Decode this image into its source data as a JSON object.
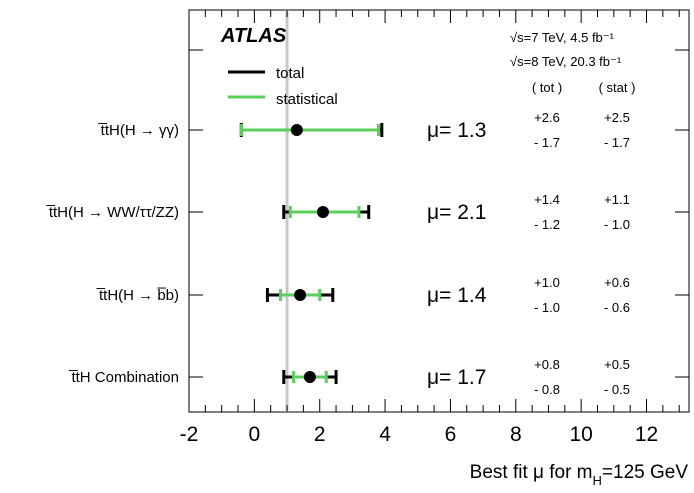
{
  "chart_data": {
    "type": "scatter",
    "title": "",
    "experiment_label": "ATLAS",
    "energy_lines": [
      "√s=7 TeV, 4.5  fb⁻¹",
      "√s=8 TeV, 20.3 fb⁻¹"
    ],
    "column_headers": [
      "( tot )",
      "( stat )"
    ],
    "legend": [
      {
        "name": "total",
        "color": "#000000"
      },
      {
        "name": "statistical",
        "color": "#5ad05a"
      }
    ],
    "xlabel": "Best fit μ for m_H=125 GeV",
    "xlabel_parts": {
      "pre": "Best fit μ for m",
      "sub": "H",
      "post": "=125 GeV"
    },
    "xlim": [
      -2,
      13.3
    ],
    "xticks": [
      -2,
      0,
      2,
      4,
      6,
      8,
      10,
      12
    ],
    "xtick_labels": [
      "-2",
      "0",
      "2",
      "4",
      "6",
      "8",
      "10",
      "12"
    ],
    "reference_line": {
      "x": 1.0,
      "color": "#c8c8c8"
    },
    "categories": [
      "t̅tH(H → γγ)",
      "t̅tH(H → WW/ττ/ZZ)",
      "t̅tH(H → b̅b)",
      "t̅tH Combination"
    ],
    "series": [
      {
        "name": "total",
        "values": [
          1.3,
          2.1,
          1.4,
          1.7
        ],
        "err_up": [
          2.6,
          1.4,
          1.0,
          0.8
        ],
        "err_down": [
          1.7,
          1.2,
          1.0,
          0.8
        ]
      },
      {
        "name": "statistical",
        "values": [
          1.3,
          2.1,
          1.4,
          1.7
        ],
        "err_up": [
          2.5,
          1.1,
          0.6,
          0.5
        ],
        "err_down": [
          1.7,
          1.0,
          0.6,
          0.5
        ]
      }
    ],
    "mu_labels": [
      "μ= 1.3",
      "μ= 2.1",
      "μ= 1.4",
      "μ= 1.7"
    ],
    "tot_up_labels": [
      "+2.6",
      "+1.4",
      "+1.0",
      "+0.8"
    ],
    "tot_down_labels": [
      "- 1.7",
      "- 1.2",
      "- 1.0",
      "- 0.8"
    ],
    "stat_up_labels": [
      "+2.5",
      "+1.1",
      "+0.6",
      "+0.5"
    ],
    "stat_down_labels": [
      "- 1.7",
      "- 1.0",
      "- 0.6",
      "- 0.5"
    ],
    "grid": false,
    "legend_position": "top-left"
  }
}
